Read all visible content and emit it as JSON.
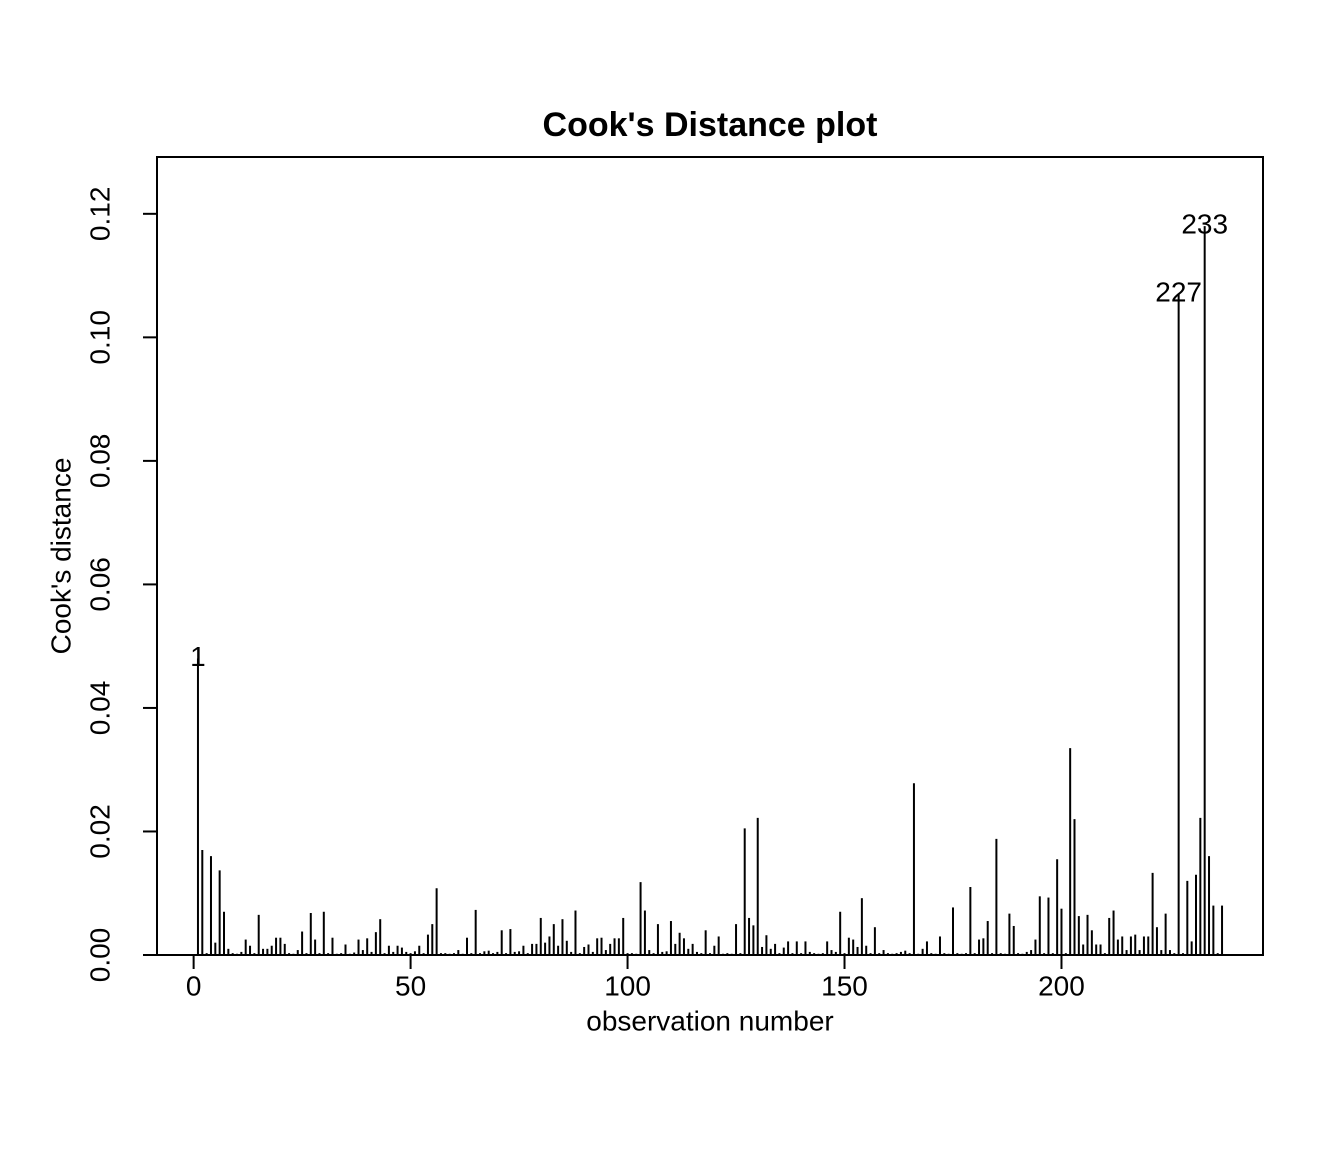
{
  "chart_data": {
    "type": "needle",
    "title": "Cook's Distance plot",
    "x_label": "observation number",
    "y_label": "Cook's distance",
    "xlim": [
      -8.44,
      246.44
    ],
    "ylim": [
      0,
      0.1292
    ],
    "xticks": [
      0,
      50,
      100,
      150,
      200
    ],
    "yticks": [
      {
        "value": 0,
        "label": "0.00"
      },
      {
        "value": 0.02,
        "label": "0.02"
      },
      {
        "value": 0.04,
        "label": "0.04"
      },
      {
        "value": 0.06,
        "label": "0.06"
      },
      {
        "value": 0.08,
        "label": "0.08"
      },
      {
        "value": 0.1,
        "label": "0.10"
      },
      {
        "value": 0.12,
        "label": "0.12"
      }
    ],
    "color": "#000000",
    "x": [
      1,
      2,
      3,
      4,
      5,
      6,
      7,
      8,
      9,
      10,
      11,
      12,
      13,
      14,
      15,
      16,
      17,
      18,
      19,
      20,
      21,
      22,
      23,
      24,
      25,
      26,
      27,
      28,
      29,
      30,
      31,
      32,
      33,
      34,
      35,
      36,
      37,
      38,
      39,
      40,
      41,
      42,
      43,
      44,
      45,
      46,
      47,
      48,
      49,
      50,
      51,
      52,
      53,
      54,
      55,
      56,
      57,
      58,
      59,
      60,
      61,
      62,
      63,
      64,
      65,
      66,
      67,
      68,
      69,
      70,
      71,
      72,
      73,
      74,
      75,
      76,
      77,
      78,
      79,
      80,
      81,
      82,
      83,
      84,
      85,
      86,
      87,
      88,
      89,
      90,
      91,
      92,
      93,
      94,
      95,
      96,
      97,
      98,
      99,
      100,
      101,
      102,
      103,
      104,
      105,
      106,
      107,
      108,
      109,
      110,
      111,
      112,
      113,
      114,
      115,
      116,
      117,
      118,
      119,
      120,
      121,
      122,
      123,
      124,
      125,
      126,
      127,
      128,
      129,
      130,
      131,
      132,
      133,
      134,
      135,
      136,
      137,
      138,
      139,
      140,
      141,
      142,
      143,
      144,
      145,
      146,
      147,
      148,
      149,
      150,
      151,
      152,
      153,
      154,
      155,
      156,
      157,
      158,
      159,
      160,
      161,
      162,
      163,
      164,
      165,
      166,
      167,
      168,
      169,
      170,
      171,
      172,
      173,
      174,
      175,
      176,
      177,
      178,
      179,
      180,
      181,
      182,
      183,
      184,
      185,
      186,
      187,
      188,
      189,
      190,
      191,
      192,
      193,
      194,
      195,
      196,
      197,
      198,
      199,
      200,
      201,
      202,
      203,
      204,
      205,
      206,
      207,
      208,
      209,
      210,
      211,
      212,
      213,
      214,
      215,
      216,
      217,
      218,
      219,
      220,
      221,
      222,
      223,
      224,
      225,
      226,
      227,
      228,
      229,
      230,
      231,
      232,
      233,
      234,
      235,
      236,
      237
    ],
    "values": [
      0.048,
      0.017,
      0.0003,
      0.016,
      0.002,
      0.0137,
      0.007,
      0.001,
      0.0003,
      0.0002,
      0.0005,
      0.0025,
      0.0015,
      0.0003,
      0.0065,
      0.001,
      0.001,
      0.0015,
      0.0028,
      0.0028,
      0.0018,
      0.0003,
      0.0002,
      0.0008,
      0.0038,
      0.0003,
      0.0068,
      0.0025,
      0.0003,
      0.007,
      0.0003,
      0.0028,
      0.0002,
      0.0003,
      0.0017,
      0.0002,
      0.0004,
      0.0025,
      0.0008,
      0.0027,
      0.0005,
      0.0037,
      0.0058,
      0.0003,
      0.0015,
      0.0005,
      0.0015,
      0.0012,
      0.0005,
      0.0003,
      0.0006,
      0.0015,
      0.0003,
      0.0033,
      0.005,
      0.0108,
      0.0003,
      0.0003,
      0.0002,
      0.0003,
      0.0008,
      0.0002,
      0.0028,
      0.0003,
      0.0073,
      0.0003,
      0.0006,
      0.0007,
      0.0003,
      0.0005,
      0.004,
      0.0003,
      0.0042,
      0.0005,
      0.0006,
      0.0015,
      0.0003,
      0.0018,
      0.0018,
      0.006,
      0.002,
      0.003,
      0.005,
      0.0015,
      0.0058,
      0.0023,
      0.0005,
      0.0072,
      0.0003,
      0.0013,
      0.0017,
      0.0005,
      0.0027,
      0.0028,
      0.0008,
      0.0018,
      0.0027,
      0.0027,
      0.006,
      0.0003,
      0.0003,
      0.0002,
      0.0118,
      0.0072,
      0.0008,
      0.0003,
      0.005,
      0.0005,
      0.0006,
      0.0055,
      0.0018,
      0.0036,
      0.0027,
      0.001,
      0.0018,
      0.0005,
      0.0003,
      0.004,
      0.0003,
      0.0015,
      0.003,
      0.0002,
      0.0003,
      0.0002,
      0.005,
      0.0003,
      0.0205,
      0.006,
      0.0048,
      0.0222,
      0.0013,
      0.0032,
      0.001,
      0.0018,
      0.0003,
      0.0012,
      0.0022,
      0.0003,
      0.0022,
      0.0003,
      0.0022,
      0.0005,
      0.0003,
      0.0002,
      0.0003,
      0.0022,
      0.0008,
      0.0005,
      0.007,
      0.0003,
      0.0028,
      0.0025,
      0.0013,
      0.0092,
      0.0015,
      0.0003,
      0.0045,
      0.0003,
      0.0008,
      0.0003,
      0.0002,
      0.0003,
      0.0005,
      0.0007,
      0.0003,
      0.0278,
      0.0002,
      0.001,
      0.0022,
      0.0003,
      0.0002,
      0.003,
      0.0003,
      0.0002,
      0.0077,
      0.0003,
      0.0002,
      0.0003,
      0.011,
      0.0003,
      0.0025,
      0.0027,
      0.0055,
      0.0003,
      0.0188,
      0.0003,
      0.0002,
      0.0067,
      0.0047,
      0.0003,
      0.0002,
      0.0005,
      0.0008,
      0.0025,
      0.0095,
      0.0003,
      0.0093,
      0.0003,
      0.0155,
      0.0075,
      0.0003,
      0.0335,
      0.022,
      0.0063,
      0.0017,
      0.0065,
      0.004,
      0.0017,
      0.0017,
      0.0003,
      0.006,
      0.0072,
      0.0025,
      0.003,
      0.0008,
      0.003,
      0.0033,
      0.0008,
      0.003,
      0.003,
      0.0133,
      0.0045,
      0.0008,
      0.0067,
      0.0008,
      0.0003,
      0.107,
      0.0003,
      0.012,
      0.0022,
      0.013,
      0.0222,
      0.118,
      0.016,
      0.008,
      0.0003,
      0.008
    ],
    "point_labels": [
      {
        "x": 1,
        "text": "1"
      },
      {
        "x": 227,
        "text": "227"
      },
      {
        "x": 233,
        "text": "233"
      }
    ]
  }
}
